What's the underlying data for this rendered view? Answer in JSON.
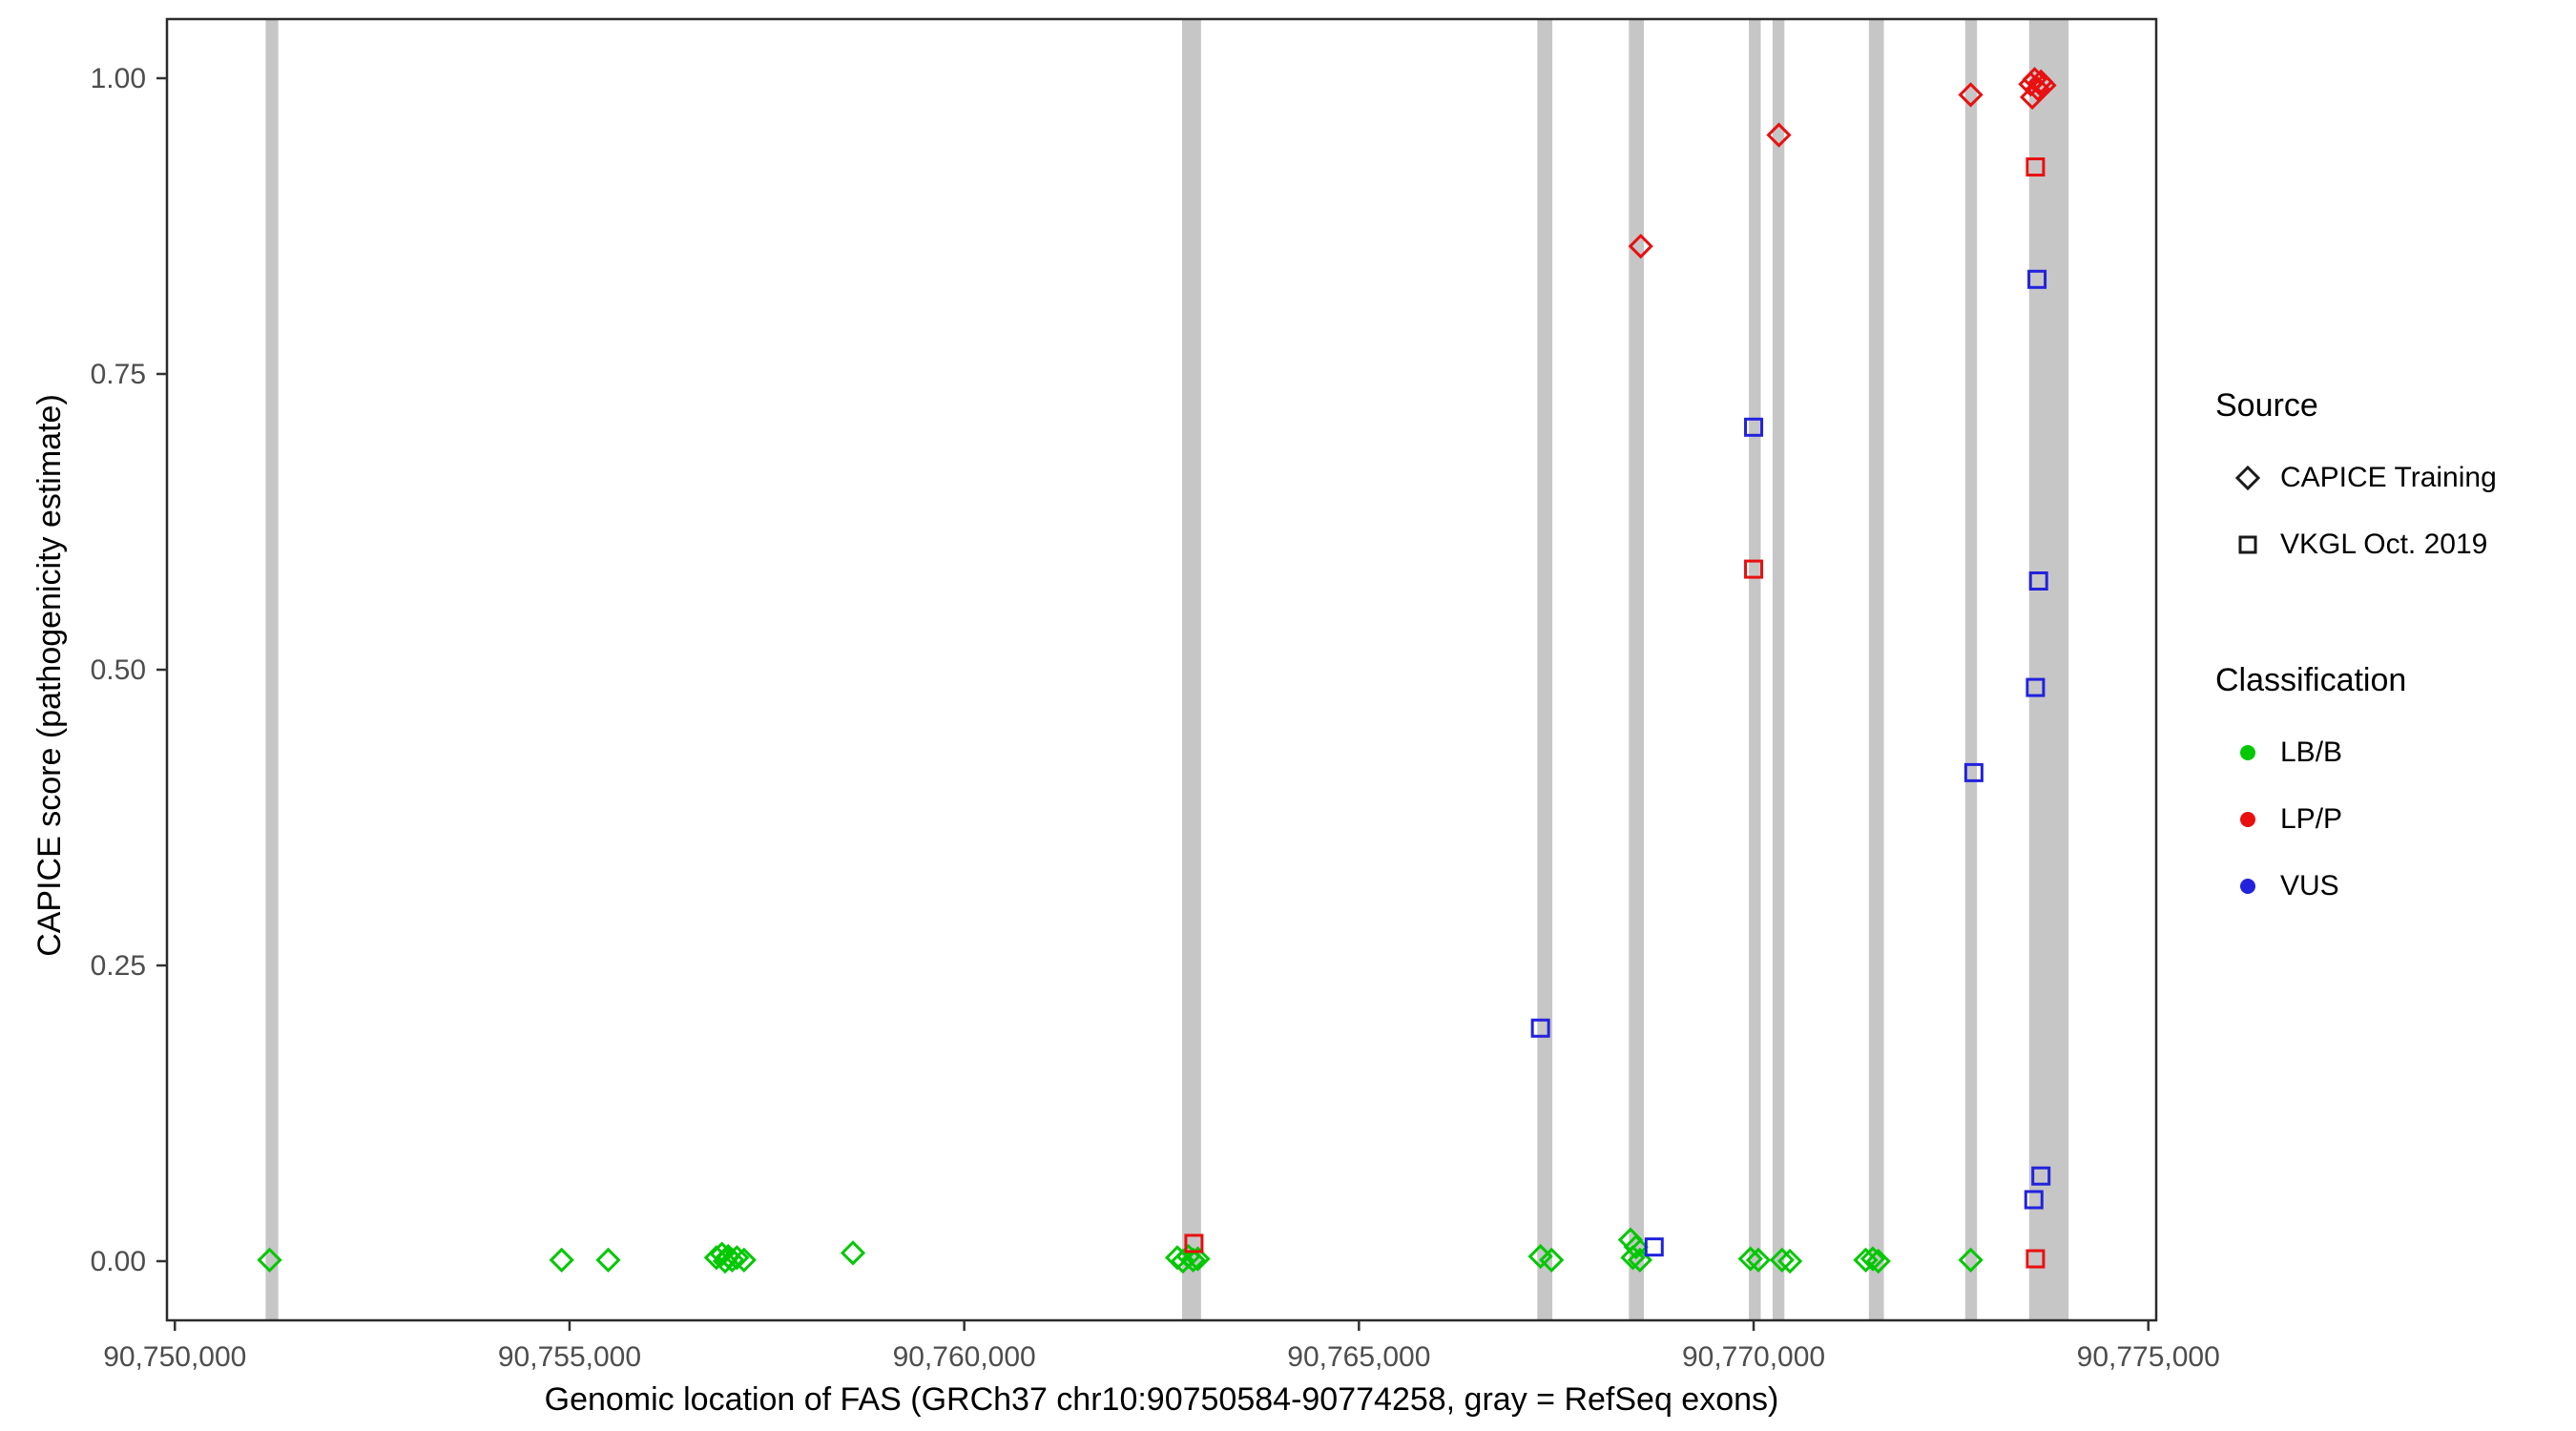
{
  "chart_data": {
    "type": "scatter",
    "title": "",
    "xlabel": "Genomic location of FAS (GRCh37 chr10:90750584-90774258, gray = RefSeq exons)",
    "ylabel": "CAPICE score (pathogenicity estimate)",
    "xlim": [
      90749900,
      90775100
    ],
    "ylim": [
      -0.05,
      1.05
    ],
    "grid": false,
    "legend_position": "right",
    "x_ticks": [
      {
        "value": 90750000,
        "label": "90,750,000"
      },
      {
        "value": 90755000,
        "label": "90,755,000"
      },
      {
        "value": 90760000,
        "label": "90,760,000"
      },
      {
        "value": 90765000,
        "label": "90,765,000"
      },
      {
        "value": 90770000,
        "label": "90,770,000"
      },
      {
        "value": 90775000,
        "label": "90,775,000"
      }
    ],
    "y_ticks": [
      {
        "value": 0.0,
        "label": "0.00"
      },
      {
        "value": 0.25,
        "label": "0.25"
      },
      {
        "value": 0.5,
        "label": "0.50"
      },
      {
        "value": 0.75,
        "label": "0.75"
      },
      {
        "value": 1.0,
        "label": "1.00"
      }
    ],
    "exon_color": "#c6c6c6",
    "exons": [
      {
        "start": 90751150,
        "end": 90751310
      },
      {
        "start": 90762760,
        "end": 90763000
      },
      {
        "start": 90767260,
        "end": 90767450
      },
      {
        "start": 90768420,
        "end": 90768610
      },
      {
        "start": 90769940,
        "end": 90770090
      },
      {
        "start": 90770240,
        "end": 90770390
      },
      {
        "start": 90771460,
        "end": 90771650
      },
      {
        "start": 90772680,
        "end": 90772830
      },
      {
        "start": 90773490,
        "end": 90773990
      }
    ],
    "series": [
      {
        "id": "capice-lbb",
        "source": "CAPICE Training",
        "classification": "LB/B",
        "marker": "diamond",
        "color": "#00c800",
        "points": [
          [
            90751200,
            0.001
          ],
          [
            90754900,
            0.001
          ],
          [
            90755490,
            0.001
          ],
          [
            90756860,
            0.003
          ],
          [
            90756930,
            0.006
          ],
          [
            90756970,
            0.0
          ],
          [
            90757010,
            0.004
          ],
          [
            90757060,
            0.001
          ],
          [
            90757120,
            0.003
          ],
          [
            90757210,
            0.001
          ],
          [
            90758590,
            0.007
          ],
          [
            90762700,
            0.003
          ],
          [
            90762770,
            0.0
          ],
          [
            90762840,
            0.004
          ],
          [
            90762900,
            0.001
          ],
          [
            90762960,
            0.002
          ],
          [
            90767300,
            0.004
          ],
          [
            90767440,
            0.001
          ],
          [
            90768440,
            0.018
          ],
          [
            90768470,
            0.003
          ],
          [
            90768510,
            0.012
          ],
          [
            90768560,
            0.001
          ],
          [
            90769960,
            0.002
          ],
          [
            90770060,
            0.001
          ],
          [
            90770360,
            0.001
          ],
          [
            90770460,
            0.0
          ],
          [
            90771420,
            0.001
          ],
          [
            90771510,
            0.002
          ],
          [
            90771580,
            0.0
          ],
          [
            90772750,
            0.001
          ]
        ]
      },
      {
        "id": "vkgl-lpp",
        "source": "VKGL Oct. 2019",
        "classification": "LP/P",
        "marker": "square",
        "color": "#e81010",
        "points": [
          [
            90762910,
            0.015
          ],
          [
            90770000,
            0.585
          ],
          [
            90773570,
            0.925
          ],
          [
            90773570,
            0.002
          ]
        ]
      },
      {
        "id": "vkgl-vus",
        "source": "VKGL Oct. 2019",
        "classification": "VUS",
        "marker": "square",
        "color": "#2222dd",
        "points": [
          [
            90767300,
            0.197
          ],
          [
            90768740,
            0.012
          ],
          [
            90770000,
            0.705
          ],
          [
            90772790,
            0.413
          ],
          [
            90773590,
            0.83
          ],
          [
            90773610,
            0.575
          ],
          [
            90773570,
            0.485
          ],
          [
            90773640,
            0.072
          ],
          [
            90773550,
            0.052
          ]
        ]
      },
      {
        "id": "capice-lpp",
        "source": "CAPICE Training",
        "classification": "LP/P",
        "marker": "diamond",
        "color": "#e81010",
        "points": [
          [
            90768570,
            0.858
          ],
          [
            90770320,
            0.952
          ],
          [
            90772750,
            0.986
          ],
          [
            90773510,
            0.995
          ],
          [
            90773560,
            0.999
          ],
          [
            90773600,
            0.991
          ],
          [
            90773640,
            0.997
          ],
          [
            90773530,
            0.984
          ],
          [
            90773680,
            0.994
          ]
        ]
      }
    ],
    "legend": {
      "source": {
        "title": "Source",
        "items": [
          {
            "label": "CAPICE Training",
            "marker": "diamond"
          },
          {
            "label": "VKGL Oct. 2019",
            "marker": "square"
          }
        ]
      },
      "classification": {
        "title": "Classification",
        "items": [
          {
            "label": "LB/B",
            "color": "#00c800"
          },
          {
            "label": "LP/P",
            "color": "#e81010"
          },
          {
            "label": "VUS",
            "color": "#2222dd"
          }
        ]
      }
    }
  }
}
